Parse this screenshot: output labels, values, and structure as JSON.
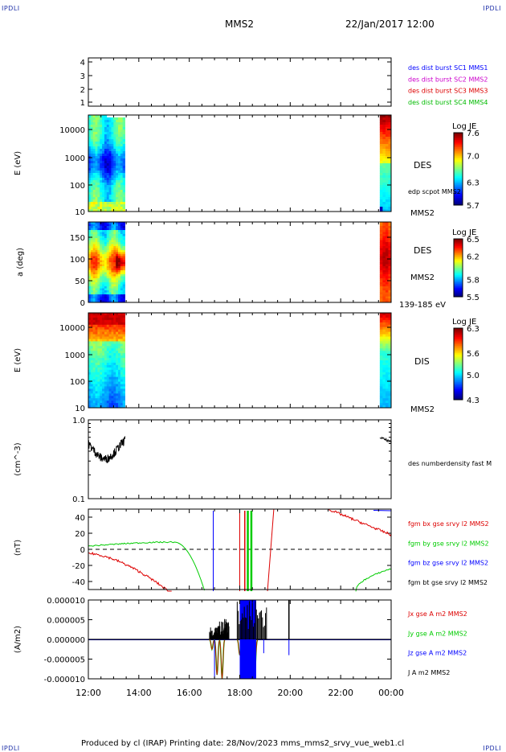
{
  "header": {
    "corner_tl": "IPDLI",
    "corner_tr": "IPDLI",
    "mission": "MMS2",
    "datetime": "22/Jan/2017 12:00"
  },
  "footer": {
    "text": "Produced by cl (IRAP)   Printing date: 28/Nov/2023   mms_mms2_srvy_vue_web1.cl",
    "corner_bl": "IPDLI",
    "corner_br": "IPDLI"
  },
  "chart_data": [
    {
      "type": "scatter",
      "panel": "burst-availability",
      "yticks": [
        "1",
        "2",
        "3",
        "4"
      ],
      "ylim": [
        0.7,
        4.3
      ],
      "legend": [
        {
          "label": "des dist burst SC1 MMS1",
          "color": "#0000ff"
        },
        {
          "label": "des dist burst SC2 MMS2",
          "color": "#cc00cc"
        },
        {
          "label": "des dist burst SC3 MMS3",
          "color": "#dd0000"
        },
        {
          "label": "des dist burst SC4 MMS4",
          "color": "#00bb00"
        }
      ]
    },
    {
      "type": "heatmap",
      "panel": "des-energy-spectrogram",
      "ylabel": "E (eV)",
      "scale": "log",
      "ylim": [
        10,
        30000
      ],
      "yticks": [
        "10000",
        "1000",
        "100",
        "10"
      ],
      "colorbar": {
        "title": "Log JE",
        "ticks": [
          "7.6",
          "7.0",
          "6.3",
          "5.7"
        ],
        "range": [
          5.7,
          7.6
        ]
      },
      "labels": [
        "DES",
        "edp scpot MMS2",
        "MMS2"
      ]
    },
    {
      "type": "heatmap",
      "panel": "des-pitch-angle",
      "ylabel": "a (deg)",
      "ylim": [
        0,
        180
      ],
      "yticks": [
        "150",
        "100",
        "50",
        "0"
      ],
      "colorbar": {
        "title": "Log JE",
        "ticks": [
          "6.5",
          "6.2",
          "5.8",
          "5.5"
        ],
        "range": [
          5.5,
          6.5
        ]
      },
      "labels": [
        "DES",
        "MMS2",
        "139-185 eV"
      ]
    },
    {
      "type": "heatmap",
      "panel": "dis-energy-spectrogram",
      "ylabel": "E (eV)",
      "scale": "log",
      "ylim": [
        10,
        30000
      ],
      "yticks": [
        "10000",
        "1000",
        "100",
        "10"
      ],
      "colorbar": {
        "title": "Log JE",
        "ticks": [
          "6.3",
          "5.6",
          "5.0",
          "4.3"
        ],
        "range": [
          4.3,
          6.3
        ]
      },
      "labels": [
        "DIS",
        "MMS2"
      ]
    },
    {
      "type": "line",
      "panel": "density",
      "ylabel": "(cm^-3)",
      "scale": "log",
      "ylim": [
        0.1,
        1.0
      ],
      "yticks": [
        "1.0",
        "0.1"
      ],
      "series": [
        {
          "name": "des numberdensity fast M",
          "color": "#000000"
        }
      ]
    },
    {
      "type": "line",
      "panel": "magnetic-field",
      "ylabel": "(nT)",
      "ylim": [
        -50,
        50
      ],
      "yticks": [
        "40",
        "20",
        "0",
        "-20",
        "-40"
      ],
      "series": [
        {
          "name": "fgm bx gse srvy l2 MMS2",
          "color": "#dd0000"
        },
        {
          "name": "fgm by gse srvy l2 MMS2",
          "color": "#00cc00"
        },
        {
          "name": "fgm bz gse srvy l2 MMS2",
          "color": "#0000ff"
        },
        {
          "name": "fgm bt gse srvy l2 MMS2",
          "color": "#000000"
        }
      ]
    },
    {
      "type": "line",
      "panel": "current-density",
      "ylabel": "(A/m2)",
      "ylim": [
        -1e-05,
        1e-05
      ],
      "yticks": [
        "0.000010",
        "0.000005",
        "0.000000",
        "-0.000005",
        "-0.000010"
      ],
      "series": [
        {
          "name": "Jx gse A m2 MMS2",
          "color": "#dd0000"
        },
        {
          "name": "Jy gse A m2 MMS2",
          "color": "#00cc00"
        },
        {
          "name": "Jz gse A m2 MMS2",
          "color": "#0000ff"
        },
        {
          "name": "J A m2 MMS2",
          "color": "#000000"
        }
      ]
    }
  ],
  "xaxis": {
    "ticks": [
      "12:00",
      "14:00",
      "16:00",
      "18:00",
      "20:00",
      "22:00",
      "00:00"
    ]
  }
}
